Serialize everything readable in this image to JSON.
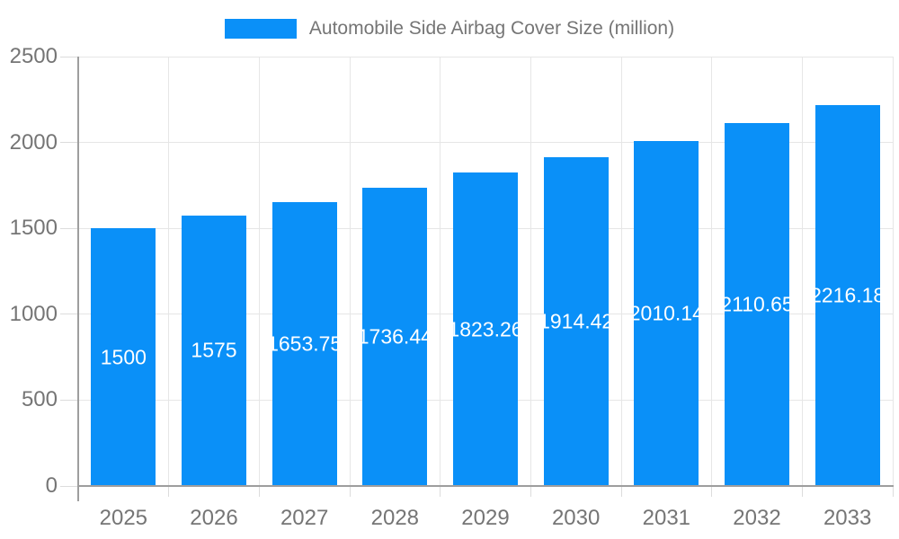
{
  "chart_data": {
    "type": "bar",
    "title": "Automobile Side Airbag Cover Size (million)",
    "categories": [
      "2025",
      "2026",
      "2027",
      "2028",
      "2029",
      "2030",
      "2031",
      "2032",
      "2033"
    ],
    "values": [
      1500,
      1575,
      1653.75,
      1736.44,
      1823.26,
      1914.42,
      2010.14,
      2110.65,
      2216.18
    ],
    "value_labels": [
      "1500",
      "1575",
      "1653.75",
      "1736.44",
      "1823.26",
      "1914.42",
      "2010.14",
      "2110.65",
      "2216.18"
    ],
    "xlabel": "",
    "ylabel": "",
    "ylim": [
      0,
      2500
    ],
    "yticks": [
      0,
      500,
      1000,
      1500,
      2000,
      2500
    ],
    "grid": true,
    "legend_position": "top-center",
    "colors": {
      "bar": "#0a90f8",
      "axis_line": "#9e9e9e",
      "gridline": "#e6e6e6",
      "tick": "#dcdcdc",
      "axis_label": "#757575",
      "value_label": "#ffffff",
      "background": "#ffffff"
    }
  }
}
